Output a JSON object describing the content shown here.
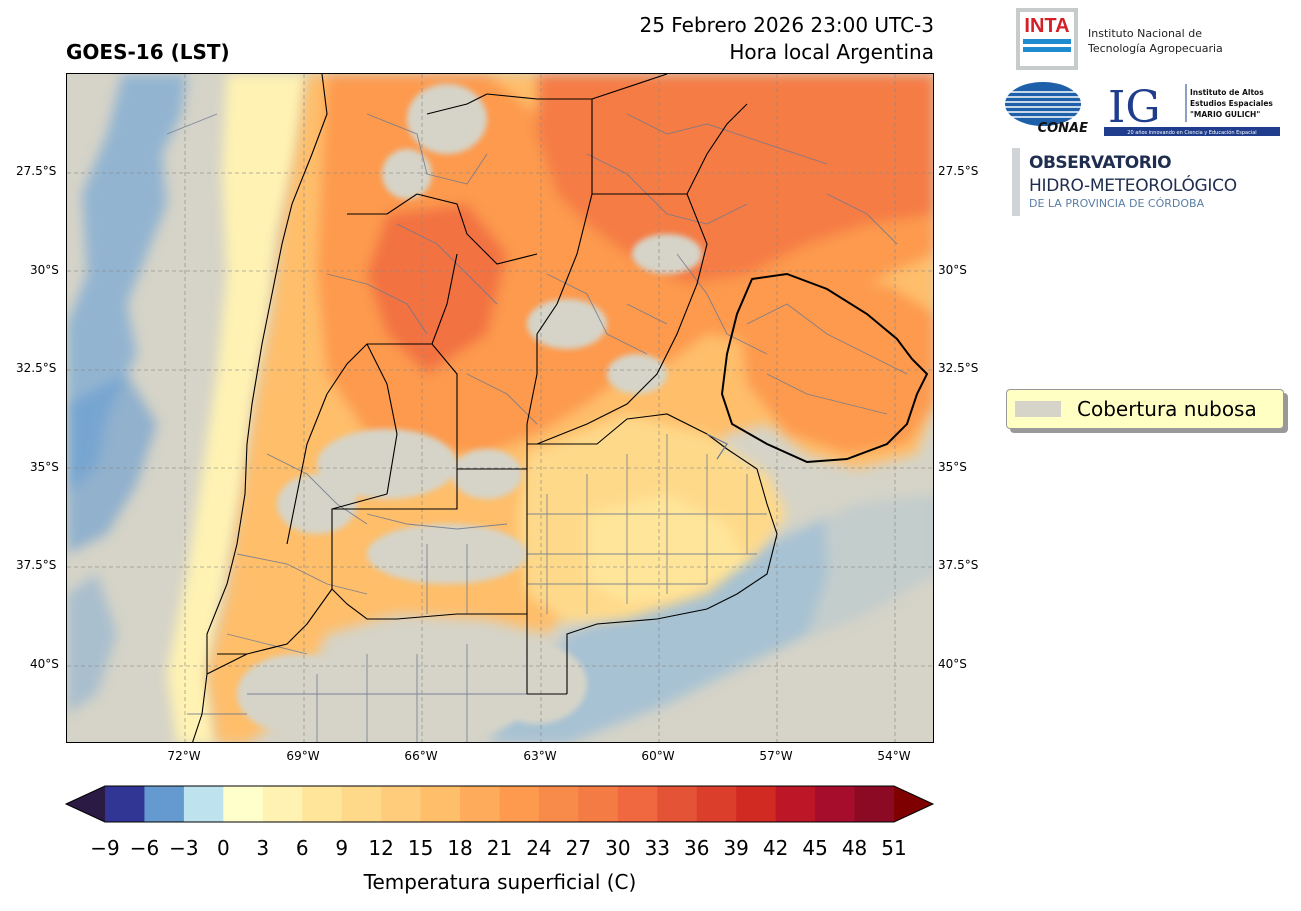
{
  "title": "GOES-16 (LST)",
  "datetime_line1": "25 Febrero 2026 23:00 UTC-3",
  "datetime_line2": "Hora local Argentina",
  "lat_labels_left": [
    "27.5°S",
    "30°S",
    "32.5°S",
    "35°S",
    "37.5°S",
    "40°S"
  ],
  "lat_labels_right": [
    "27.5°S",
    "30°S",
    "32.5°S",
    "35°S",
    "37.5°S",
    "40°S"
  ],
  "lon_labels": [
    "72°W",
    "69°W",
    "66°W",
    "63°W",
    "60°W",
    "57°W",
    "54°W"
  ],
  "colorbar": {
    "label": "Temperatura superficial (C)",
    "ticks": [
      "−9",
      "−6",
      "−3",
      "0",
      "3",
      "6",
      "9",
      "12",
      "15",
      "18",
      "21",
      "24",
      "27",
      "30",
      "33",
      "36",
      "39",
      "42",
      "45",
      "48",
      "51"
    ],
    "colors": [
      "#313695",
      "#649ad0",
      "#bee2ee",
      "#ffffcc",
      "#fff2b2",
      "#ffe599",
      "#fed98a",
      "#fecc7b",
      "#febe6a",
      "#feab5c",
      "#fd9a4e",
      "#f88b4a",
      "#f57b45",
      "#ef6840",
      "#e55336",
      "#dc3e2c",
      "#d12a23",
      "#bd1727",
      "#a60d2c",
      "#8d0a24"
    ],
    "under_color": "#2b1a44",
    "over_color": "#7f0000"
  },
  "legend": {
    "label": "Cobertura nubosa",
    "color": "#d6d4c8"
  },
  "logos": {
    "inta_abbrev": "INTA",
    "inta_line1": "Instituto Nacional de",
    "inta_line2": "Tecnología Agropecuaria",
    "conae": "CONAE",
    "ig_abbrev": "IG",
    "ig_line1": "Instituto de Altos",
    "ig_line2": "Estudios Espaciales",
    "ig_line3": "\"MARIO GULICH\"",
    "ig_footer": "20 años innovando en Ciencia y Educación Espacial",
    "obs_line1": "OBSERVATORIO",
    "obs_line2": "HIDRO-METEOROLÓGICO",
    "obs_line3": "DE LA PROVINCIA DE CÓRDOBA"
  }
}
